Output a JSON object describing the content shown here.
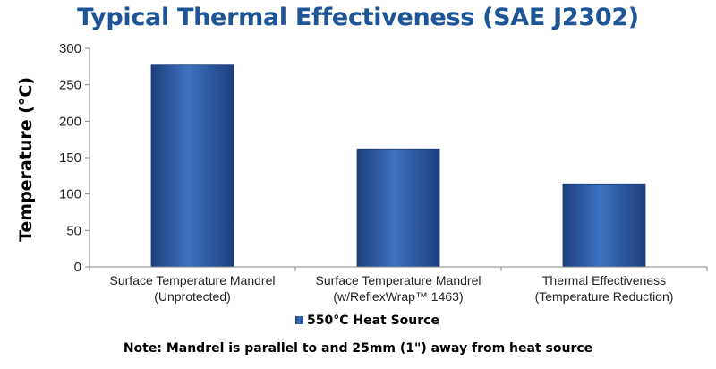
{
  "chart_data": {
    "type": "bar",
    "title": "Typical Thermal Effectiveness (SAE J2302)",
    "ylabel": "Temperature (°C)",
    "xlabel": "",
    "ylim": [
      0,
      300
    ],
    "yticks": [
      0,
      50,
      100,
      150,
      200,
      250,
      300
    ],
    "categories": [
      [
        "Surface Temperature Mandrel",
        "(Unprotected)"
      ],
      [
        "Surface Temperature Mandrel",
        "(w/ReflexWrap™ 1463)"
      ],
      [
        "Thermal Effectiveness",
        "(Temperature Reduction)"
      ]
    ],
    "series": [
      {
        "name": "550°C Heat Source",
        "values": [
          277,
          162,
          114
        ]
      }
    ],
    "legend": "bottom",
    "grid": false,
    "bar_color": "#2f5fa8"
  },
  "note": "Note: Mandrel is parallel to and 25mm (1\") away from heat source"
}
